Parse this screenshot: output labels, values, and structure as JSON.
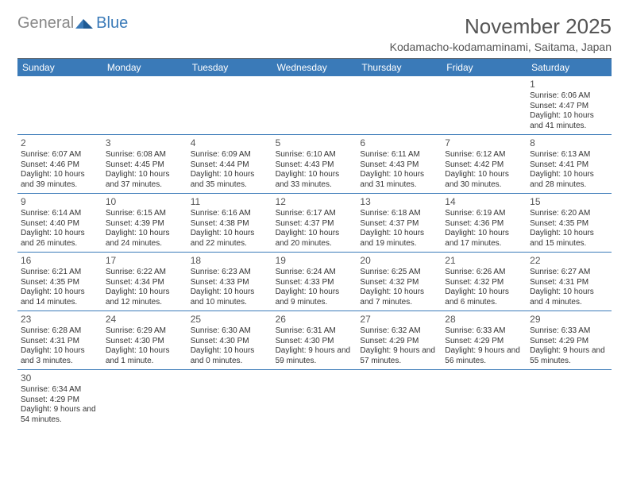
{
  "logo": {
    "part1": "General",
    "part2": "Blue"
  },
  "title": "November 2025",
  "location": "Kodamacho-kodamaminami, Saitama, Japan",
  "colors": {
    "header_bg": "#3a7ab8",
    "header_text": "#ffffff",
    "rule": "#3a7ab8",
    "text": "#333333",
    "muted": "#555555"
  },
  "weekdays": [
    "Sunday",
    "Monday",
    "Tuesday",
    "Wednesday",
    "Thursday",
    "Friday",
    "Saturday"
  ],
  "leading_blanks": 6,
  "days": [
    {
      "n": 1,
      "sunrise": "6:06 AM",
      "sunset": "4:47 PM",
      "daylight": "10 hours and 41 minutes."
    },
    {
      "n": 2,
      "sunrise": "6:07 AM",
      "sunset": "4:46 PM",
      "daylight": "10 hours and 39 minutes."
    },
    {
      "n": 3,
      "sunrise": "6:08 AM",
      "sunset": "4:45 PM",
      "daylight": "10 hours and 37 minutes."
    },
    {
      "n": 4,
      "sunrise": "6:09 AM",
      "sunset": "4:44 PM",
      "daylight": "10 hours and 35 minutes."
    },
    {
      "n": 5,
      "sunrise": "6:10 AM",
      "sunset": "4:43 PM",
      "daylight": "10 hours and 33 minutes."
    },
    {
      "n": 6,
      "sunrise": "6:11 AM",
      "sunset": "4:43 PM",
      "daylight": "10 hours and 31 minutes."
    },
    {
      "n": 7,
      "sunrise": "6:12 AM",
      "sunset": "4:42 PM",
      "daylight": "10 hours and 30 minutes."
    },
    {
      "n": 8,
      "sunrise": "6:13 AM",
      "sunset": "4:41 PM",
      "daylight": "10 hours and 28 minutes."
    },
    {
      "n": 9,
      "sunrise": "6:14 AM",
      "sunset": "4:40 PM",
      "daylight": "10 hours and 26 minutes."
    },
    {
      "n": 10,
      "sunrise": "6:15 AM",
      "sunset": "4:39 PM",
      "daylight": "10 hours and 24 minutes."
    },
    {
      "n": 11,
      "sunrise": "6:16 AM",
      "sunset": "4:38 PM",
      "daylight": "10 hours and 22 minutes."
    },
    {
      "n": 12,
      "sunrise": "6:17 AM",
      "sunset": "4:37 PM",
      "daylight": "10 hours and 20 minutes."
    },
    {
      "n": 13,
      "sunrise": "6:18 AM",
      "sunset": "4:37 PM",
      "daylight": "10 hours and 19 minutes."
    },
    {
      "n": 14,
      "sunrise": "6:19 AM",
      "sunset": "4:36 PM",
      "daylight": "10 hours and 17 minutes."
    },
    {
      "n": 15,
      "sunrise": "6:20 AM",
      "sunset": "4:35 PM",
      "daylight": "10 hours and 15 minutes."
    },
    {
      "n": 16,
      "sunrise": "6:21 AM",
      "sunset": "4:35 PM",
      "daylight": "10 hours and 14 minutes."
    },
    {
      "n": 17,
      "sunrise": "6:22 AM",
      "sunset": "4:34 PM",
      "daylight": "10 hours and 12 minutes."
    },
    {
      "n": 18,
      "sunrise": "6:23 AM",
      "sunset": "4:33 PM",
      "daylight": "10 hours and 10 minutes."
    },
    {
      "n": 19,
      "sunrise": "6:24 AM",
      "sunset": "4:33 PM",
      "daylight": "10 hours and 9 minutes."
    },
    {
      "n": 20,
      "sunrise": "6:25 AM",
      "sunset": "4:32 PM",
      "daylight": "10 hours and 7 minutes."
    },
    {
      "n": 21,
      "sunrise": "6:26 AM",
      "sunset": "4:32 PM",
      "daylight": "10 hours and 6 minutes."
    },
    {
      "n": 22,
      "sunrise": "6:27 AM",
      "sunset": "4:31 PM",
      "daylight": "10 hours and 4 minutes."
    },
    {
      "n": 23,
      "sunrise": "6:28 AM",
      "sunset": "4:31 PM",
      "daylight": "10 hours and 3 minutes."
    },
    {
      "n": 24,
      "sunrise": "6:29 AM",
      "sunset": "4:30 PM",
      "daylight": "10 hours and 1 minute."
    },
    {
      "n": 25,
      "sunrise": "6:30 AM",
      "sunset": "4:30 PM",
      "daylight": "10 hours and 0 minutes."
    },
    {
      "n": 26,
      "sunrise": "6:31 AM",
      "sunset": "4:30 PM",
      "daylight": "9 hours and 59 minutes."
    },
    {
      "n": 27,
      "sunrise": "6:32 AM",
      "sunset": "4:29 PM",
      "daylight": "9 hours and 57 minutes."
    },
    {
      "n": 28,
      "sunrise": "6:33 AM",
      "sunset": "4:29 PM",
      "daylight": "9 hours and 56 minutes."
    },
    {
      "n": 29,
      "sunrise": "6:33 AM",
      "sunset": "4:29 PM",
      "daylight": "9 hours and 55 minutes."
    },
    {
      "n": 30,
      "sunrise": "6:34 AM",
      "sunset": "4:29 PM",
      "daylight": "9 hours and 54 minutes."
    }
  ],
  "labels": {
    "sunrise": "Sunrise:",
    "sunset": "Sunset:",
    "daylight": "Daylight:"
  }
}
